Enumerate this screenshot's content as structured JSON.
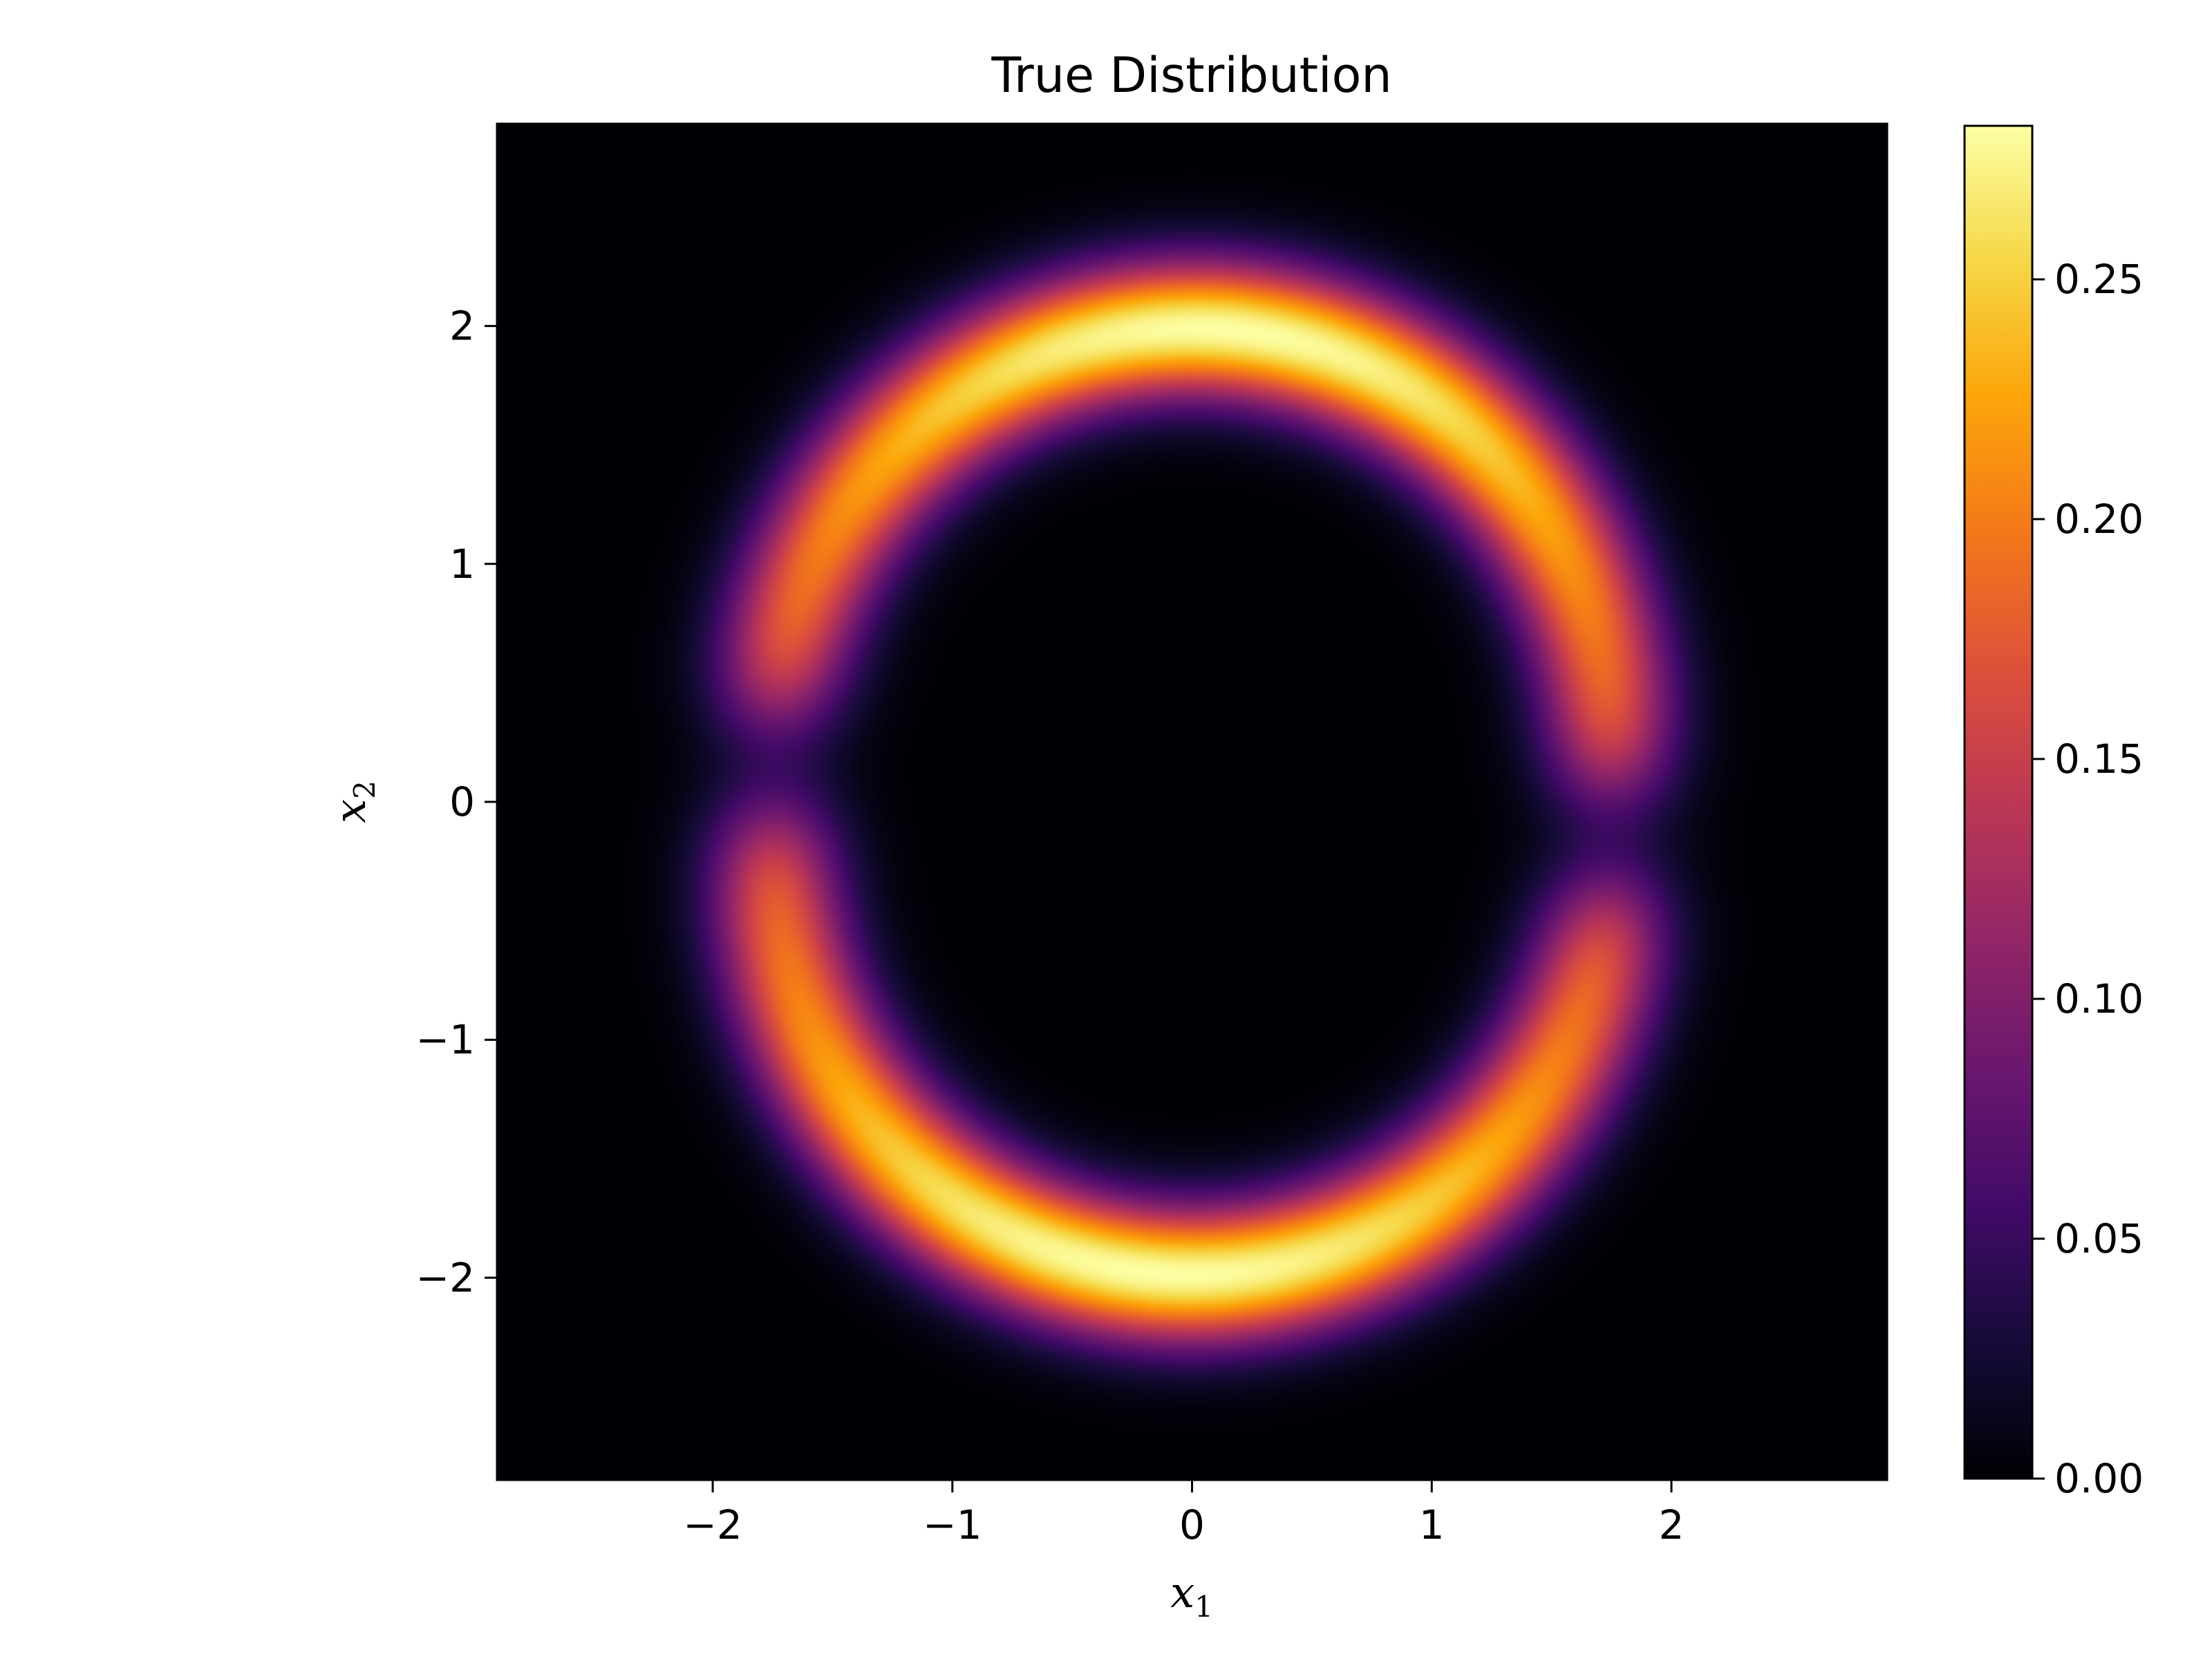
{
  "chart_data": {
    "type": "heatmap",
    "title": "True Distribution",
    "xlabel": "x",
    "xlabel_sub": "1",
    "ylabel": "x",
    "ylabel_sub": "2",
    "xlim": [
      -2.9,
      2.9
    ],
    "ylim": [
      -2.85,
      2.85
    ],
    "xticks": [
      -2,
      -1,
      0,
      1,
      2
    ],
    "xtick_labels": [
      "−2",
      "−1",
      "0",
      "1",
      "2"
    ],
    "yticks": [
      -2,
      -1,
      0,
      1,
      2
    ],
    "ytick_labels": [
      "−2",
      "−1",
      "0",
      "1",
      "2"
    ],
    "colormap": "inferno",
    "colorbar": {
      "range": [
        0.0,
        0.282
      ],
      "ticks": [
        0.0,
        0.05,
        0.1,
        0.15,
        0.2,
        0.25
      ],
      "tick_labels": [
        "0.00",
        "0.05",
        "0.10",
        "0.15",
        "0.20",
        "0.25"
      ]
    },
    "distribution": {
      "description_type": "two interleaving moons",
      "moons": [
        {
          "center": [
            0.0,
            -0.25
          ],
          "radius": 1.75,
          "arc_from_deg": 175,
          "arc_to_deg": 355,
          "shape": "upper arc"
        },
        {
          "center": [
            0.0,
            0.25
          ],
          "radius": 1.75,
          "arc_from_deg": -5,
          "arc_to_deg": 175,
          "shape": "lower arc"
        }
      ],
      "peak_value": 0.282
    },
    "grid": false
  }
}
